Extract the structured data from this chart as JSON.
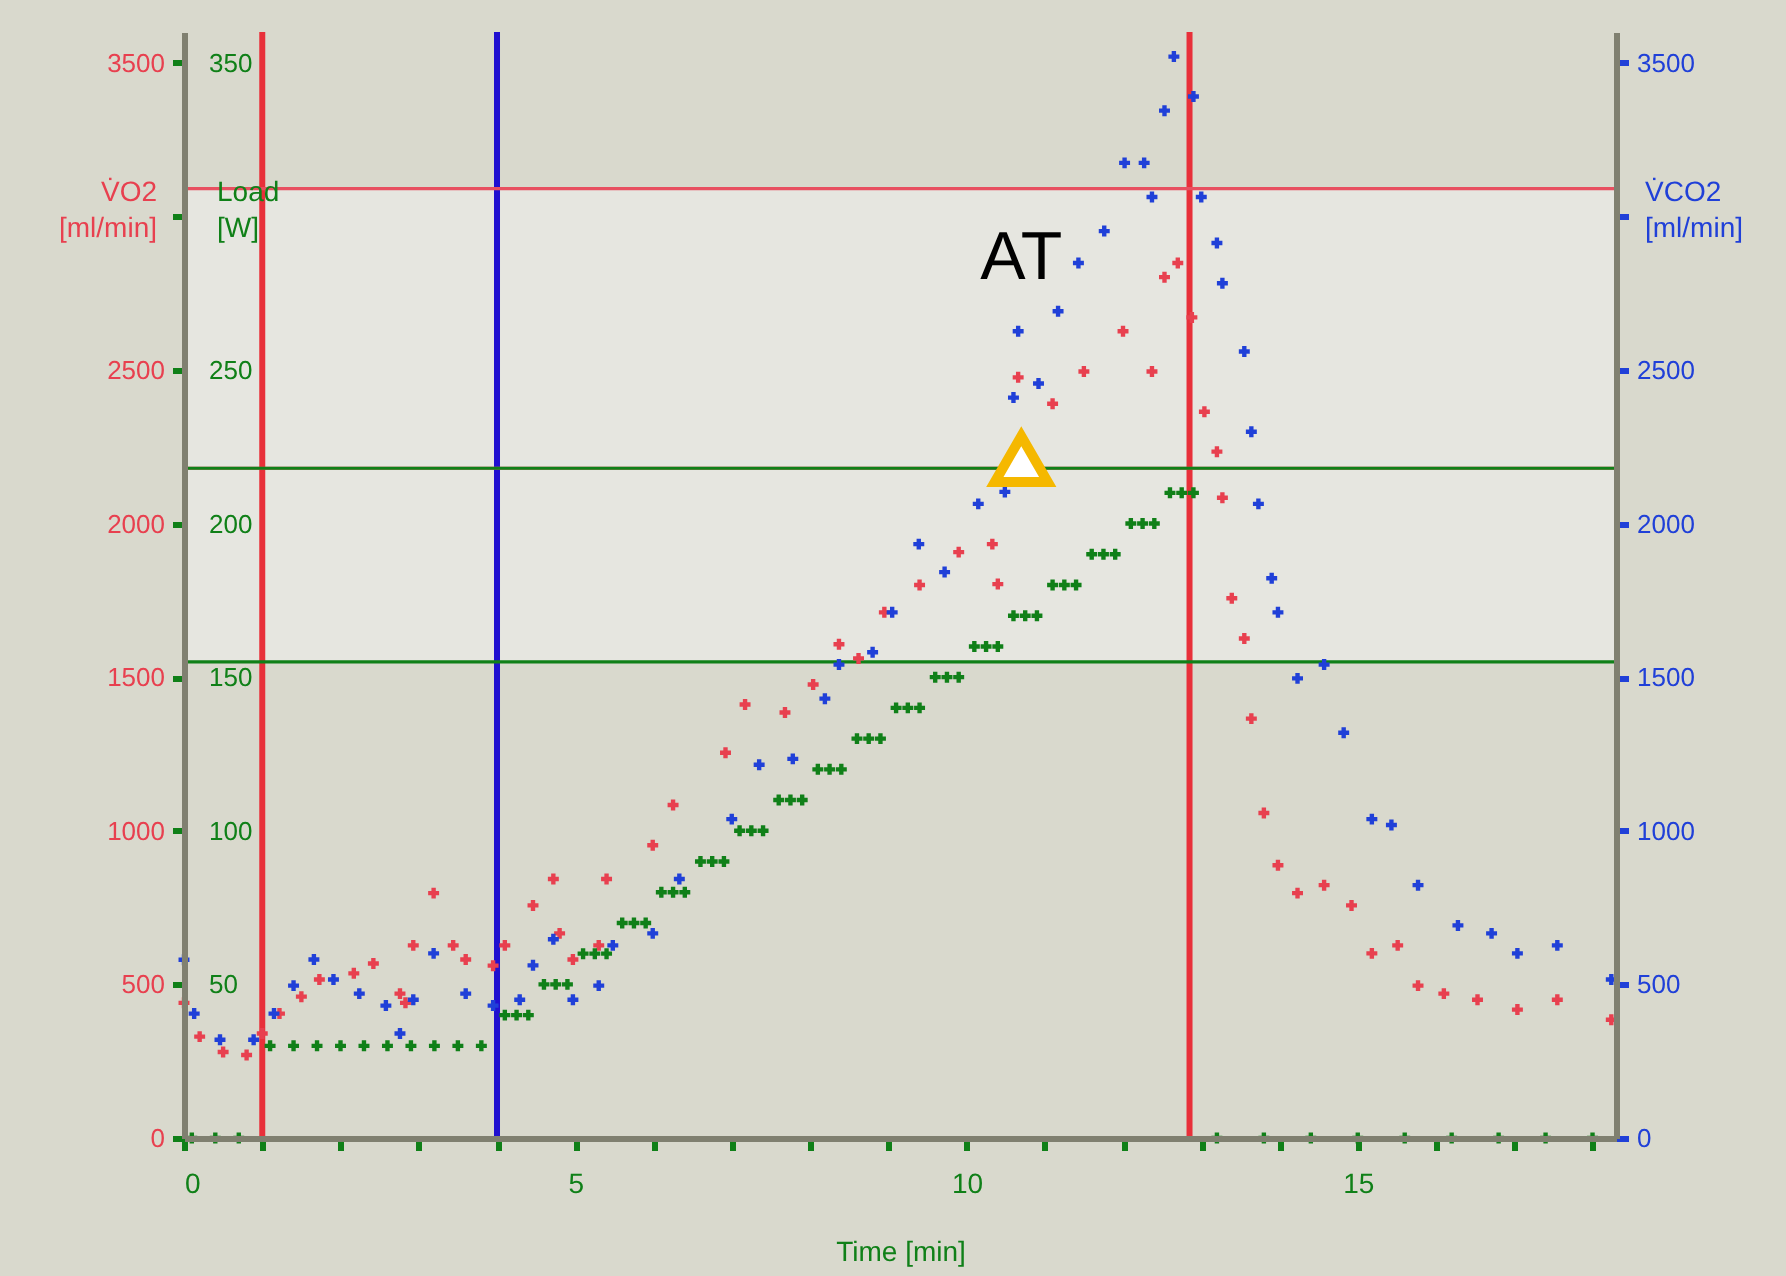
{
  "chart_data": {
    "type": "scatter",
    "marker": "cross",
    "xlabel": "Time [min]",
    "ylabel": "V̇O2 [ml/min]",
    "y2label": "Load [W]",
    "y3label": "V̇CO2 [ml/min]",
    "xlim": [
      0,
      18.3
    ],
    "xticks": [
      0,
      {
        "value": 1,
        "label": null
      },
      {
        "value": 2,
        "label": null
      },
      {
        "value": 3,
        "label": null
      },
      {
        "value": 4,
        "label": null
      },
      5,
      {
        "value": 6,
        "label": null
      },
      {
        "value": 7,
        "label": null
      },
      {
        "value": 8,
        "label": null
      },
      {
        "value": 9,
        "label": null
      },
      10,
      {
        "value": 11,
        "label": null
      },
      {
        "value": 12,
        "label": null
      },
      {
        "value": 13,
        "label": null
      },
      {
        "value": 14,
        "label": null
      },
      15,
      {
        "value": 16,
        "label": null
      },
      {
        "value": 17,
        "label": null
      },
      {
        "value": 18,
        "label": null
      }
    ],
    "ylim": [
      0,
      3600
    ],
    "yticks": [
      0,
      500,
      1000,
      1500,
      2000,
      2500,
      {
        "value": 3000,
        "label": null
      },
      3500
    ],
    "y2lim": [
      0,
      360
    ],
    "y2ticks": [
      {
        "value": 0,
        "label": null
      },
      50,
      100,
      150,
      200,
      250,
      {
        "value": 300,
        "label": null
      },
      350
    ],
    "y3lim": [
      0,
      3600
    ],
    "y3ticks": [
      0,
      500,
      1000,
      1500,
      2000,
      2500,
      {
        "value": 3000,
        "label": null
      },
      3500
    ],
    "bands": [
      {
        "axis": "y",
        "from": 2180,
        "to": 3090,
        "color": "#e6e6e0"
      },
      {
        "axis": "y2",
        "from": 155,
        "to": 218,
        "color": "#e6e6e0"
      }
    ],
    "ref_lines": [
      {
        "axis": "x",
        "value": 1,
        "color": "#e8303a"
      },
      {
        "axis": "x",
        "value": 4,
        "color": "#2010d0"
      },
      {
        "axis": "x",
        "value": 12.85,
        "color": "#e8303a"
      },
      {
        "axis": "y",
        "value": 3090,
        "color": "#e85060"
      },
      {
        "axis": "y",
        "value": 2180,
        "color": "#e85060"
      },
      {
        "axis": "y2",
        "value": 218,
        "color": "#108018"
      },
      {
        "axis": "y2",
        "value": 155,
        "color": "#108018"
      }
    ],
    "annotations": [
      {
        "text": "AT",
        "x": 10.7,
        "y": 2210
      }
    ],
    "series": [
      {
        "color": "#e8404f",
        "x": [
          0,
          0.2,
          0.5,
          0.8,
          1.0,
          1.22,
          1.5,
          1.73,
          2.17,
          2.42,
          2.76,
          2.83,
          2.93,
          3.19,
          3.44,
          3.6,
          3.95,
          4.1,
          4.46,
          4.72,
          4.8,
          4.97,
          5.3,
          5.4,
          5.99,
          6.25,
          6.92,
          7.17,
          7.68,
          8.04,
          8.37,
          8.62,
          8.95,
          9.4,
          9.9,
          10.33,
          10.4,
          10.66,
          11.1,
          11.5,
          12.0,
          12.37,
          12.53,
          12.7,
          12.88,
          13.04,
          13.2,
          13.27,
          13.39,
          13.55,
          13.64,
          13.8,
          13.98,
          14.23,
          14.57,
          14.92,
          15.18,
          15.51,
          15.77,
          16.1,
          16.53,
          17.04,
          17.55,
          18.24
        ],
        "values": [
          440,
          330,
          280,
          270,
          340,
          405,
          460,
          516,
          536,
          568,
          470,
          440,
          627,
          797,
          627,
          581,
          561,
          627,
          757,
          843,
          666,
          581,
          627,
          843,
          953,
          1084,
          1254,
          1411,
          1385,
          1476,
          1607,
          1561,
          1711,
          1800,
          1907,
          1933,
          1803,
          2476,
          2390,
          2495,
          2626,
          2495,
          2802,
          2848,
          2671,
          2364,
          2234,
          2084,
          1757,
          1626,
          1365,
          1058,
          888,
          797,
          823,
          757,
          601,
          627,
          496,
          470,
          450,
          418,
          450,
          385
        ]
      },
      {
        "color": "#108018",
        "axis": "y2",
        "x": [
          0.1,
          0.4,
          0.7,
          1.1,
          1.4,
          1.7,
          2.0,
          2.3,
          2.6,
          2.9,
          3.2,
          3.5,
          3.8,
          4.1,
          4.25,
          4.4,
          4.6,
          4.75,
          4.9,
          5.1,
          5.25,
          5.4,
          5.6,
          5.75,
          5.9,
          6.1,
          6.25,
          6.4,
          6.6,
          6.75,
          6.9,
          7.1,
          7.25,
          7.4,
          7.6,
          7.75,
          7.9,
          8.1,
          8.25,
          8.4,
          8.6,
          8.75,
          8.9,
          9.1,
          9.25,
          9.4,
          9.6,
          9.75,
          9.9,
          10.1,
          10.25,
          10.4,
          10.6,
          10.75,
          10.9,
          11.1,
          11.25,
          11.4,
          11.6,
          11.75,
          11.9,
          12.1,
          12.25,
          12.4,
          12.6,
          12.75,
          12.9,
          13.2,
          13.8,
          14.4,
          15.0,
          15.6,
          16.2,
          16.8,
          17.4,
          18.0
        ],
        "values": [
          0,
          0,
          0,
          30,
          30,
          30,
          30,
          30,
          30,
          30,
          30,
          30,
          30,
          40,
          40,
          40,
          50,
          50,
          50,
          60,
          60,
          60,
          70,
          70,
          70,
          80,
          80,
          80,
          90,
          90,
          90,
          100,
          100,
          100,
          110,
          110,
          110,
          120,
          120,
          120,
          130,
          130,
          130,
          140,
          140,
          140,
          150,
          150,
          150,
          160,
          160,
          160,
          170,
          170,
          170,
          180,
          180,
          180,
          190,
          190,
          190,
          200,
          200,
          200,
          210,
          210,
          210,
          0,
          0,
          0,
          0,
          0,
          0,
          0,
          0,
          0
        ]
      },
      {
        "color": "#2040d8",
        "axis": "y3",
        "x": [
          0,
          0.13,
          0.46,
          0.89,
          1.15,
          1.4,
          1.66,
          1.91,
          2.24,
          2.58,
          2.76,
          2.93,
          3.19,
          3.6,
          3.95,
          4.29,
          4.46,
          4.72,
          4.97,
          5.3,
          5.48,
          5.99,
          6.33,
          7.0,
          7.35,
          7.78,
          8.19,
          8.37,
          8.8,
          9.05,
          9.39,
          9.72,
          10.15,
          10.49,
          10.6,
          10.66,
          10.92,
          11.17,
          11.43,
          11.76,
          12.02,
          12.27,
          12.37,
          12.53,
          12.65,
          12.9,
          13.0,
          13.2,
          13.27,
          13.55,
          13.64,
          13.73,
          13.9,
          13.98,
          14.23,
          14.57,
          14.82,
          15.18,
          15.43,
          15.77,
          16.28,
          16.71,
          17.04,
          17.55,
          18.24
        ],
        "values": [
          580,
          405,
          320,
          320,
          405,
          496,
          581,
          516,
          470,
          431,
          340,
          450,
          601,
          470,
          431,
          450,
          562,
          647,
          450,
          496,
          627,
          666,
          843,
          1038,
          1215,
          1234,
          1430,
          1541,
          1581,
          1711,
          1933,
          1842,
          2064,
          2103,
          2410,
          2626,
          2456,
          2691,
          2848,
          2952,
          3174,
          3174,
          3063,
          3344,
          3520,
          3390,
          3063,
          2913,
          2782,
          2560,
          2299,
          2064,
          1822,
          1711,
          1496,
          1541,
          1319,
          1038,
          1019,
          823,
          692,
          666,
          601,
          627,
          516
        ]
      }
    ]
  }
}
